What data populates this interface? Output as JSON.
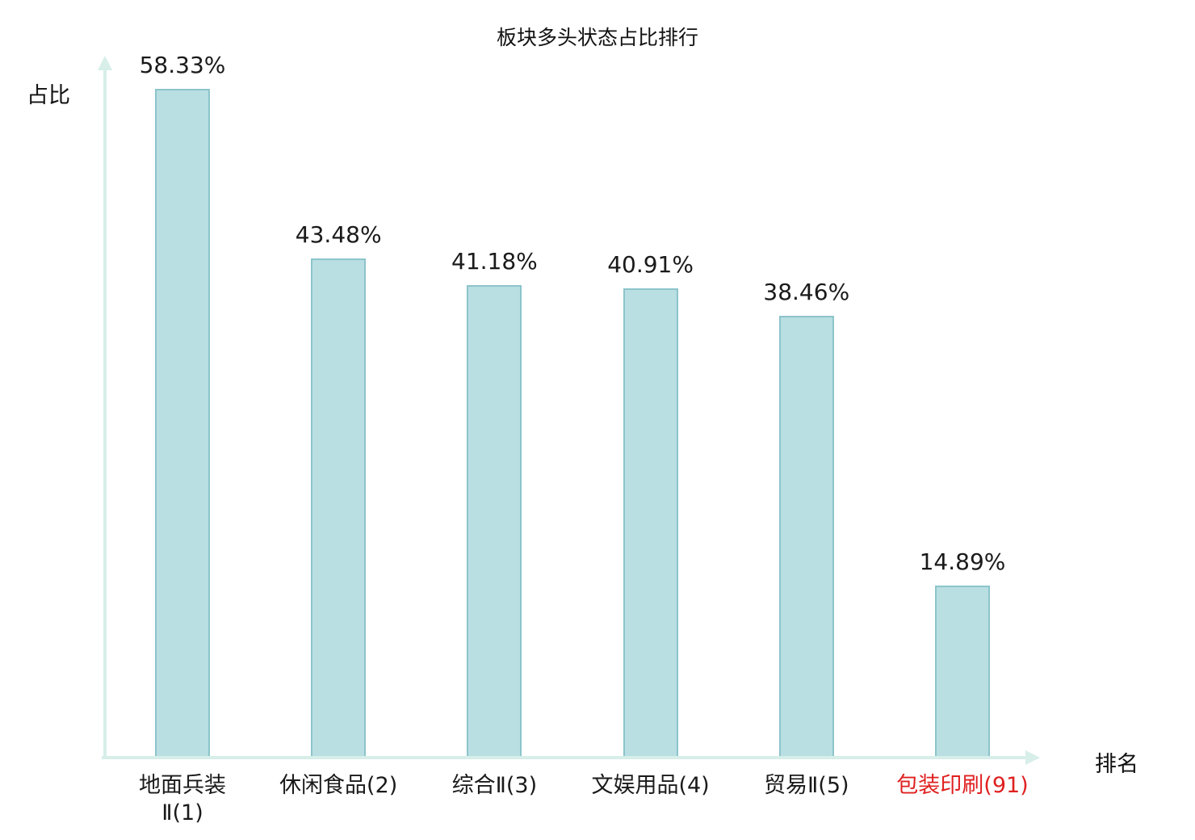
{
  "chart_data": {
    "type": "bar",
    "title": "板块多头状态占比排行",
    "ylabel": "占比",
    "xlabel": "排名",
    "categories": [
      "地面兵装\nⅡ(1)",
      "休闲食品(2)",
      "综合Ⅱ(3)",
      "文娱用品(4)",
      "贸易Ⅱ(5)",
      "包装印刷(91)"
    ],
    "values": [
      58.33,
      43.48,
      41.18,
      40.91,
      38.46,
      14.89
    ],
    "value_labels": [
      "58.33%",
      "43.48%",
      "41.18%",
      "40.91%",
      "38.46%",
      "14.89%"
    ],
    "highlight_category_index": 5,
    "ylim": [
      0,
      60
    ],
    "grid": false,
    "legend": null,
    "colors": {
      "bar_fill": "#b9dfe3",
      "bar_stroke": "#8cc4cb",
      "axis": "#d7eee9",
      "text": "#1a1a1a",
      "highlight_text": "#e02020",
      "background": "#ffffff"
    }
  }
}
